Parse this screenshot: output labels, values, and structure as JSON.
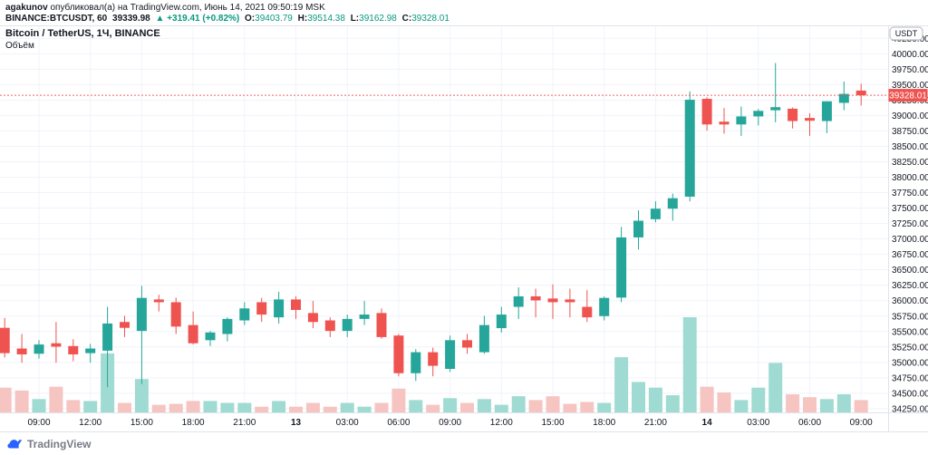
{
  "header": {
    "author": "agakunov",
    "byline": " опубликовал(а) на TradingView.com, Июнь 14, 2021 09:50:19 MSK",
    "quote": {
      "symbol": "BINANCE:BTCUSDT, 60",
      "last": "39339.98",
      "change": "▲ +319.41 (+0.82%)",
      "o_label": "O:",
      "o": "39403.79",
      "h_label": "H:",
      "h": "39514.38",
      "l_label": "L:",
      "l": "39162.98",
      "c_label": "C:",
      "c": "39328.01"
    }
  },
  "chart": {
    "title": "Bitcoin / TetherUS, 1Ч, BINANCE",
    "volume_label": "Объём",
    "axis_currency": "USDT",
    "current_price_label": "39328.01",
    "colors": {
      "up": "#26a69a",
      "down": "#ef5350",
      "vol_up": "#9fdbd2",
      "vol_down": "#f6c5c2",
      "grid": "#f0f3fa",
      "border": "#e0e3eb",
      "axis_text": "#131722",
      "muted_text": "#787b86",
      "price_line": "#ef5350",
      "accent_green": "#089981",
      "logo_blue": "#2962ff"
    }
  },
  "chart_data": {
    "type": "candlestick",
    "symbol": "BINANCE:BTCUSDT",
    "interval_minutes": 60,
    "timezone": "MSK",
    "current_price": 39328.01,
    "price_axis": {
      "min": 34250,
      "max": 40250,
      "step": 250,
      "unit": "USDT"
    },
    "grid": true,
    "volume_note": "volume_rel is percent of tallest visible volume bar (no numeric volume axis shown)",
    "time_ticks": [
      {
        "index": 2,
        "label": "09:00",
        "bold": false
      },
      {
        "index": 5,
        "label": "12:00",
        "bold": false
      },
      {
        "index": 8,
        "label": "15:00",
        "bold": false
      },
      {
        "index": 11,
        "label": "18:00",
        "bold": false
      },
      {
        "index": 14,
        "label": "21:00",
        "bold": false
      },
      {
        "index": 17,
        "label": "13",
        "bold": true
      },
      {
        "index": 20,
        "label": "03:00",
        "bold": false
      },
      {
        "index": 23,
        "label": "06:00",
        "bold": false
      },
      {
        "index": 26,
        "label": "09:00",
        "bold": false
      },
      {
        "index": 29,
        "label": "12:00",
        "bold": false
      },
      {
        "index": 32,
        "label": "15:00",
        "bold": false
      },
      {
        "index": 35,
        "label": "18:00",
        "bold": false
      },
      {
        "index": 38,
        "label": "21:00",
        "bold": false
      },
      {
        "index": 41,
        "label": "14",
        "bold": true
      },
      {
        "index": 44,
        "label": "03:00",
        "bold": false
      },
      {
        "index": 47,
        "label": "06:00",
        "bold": false
      },
      {
        "index": 50,
        "label": "09:00",
        "bold": false
      }
    ],
    "columns": [
      "time",
      "open",
      "high",
      "low",
      "close",
      "volume_rel"
    ],
    "candles": [
      [
        "12.06 07:00",
        35560,
        35720,
        35080,
        35150,
        26
      ],
      [
        "12.06 08:00",
        35225,
        35460,
        34995,
        35130,
        23
      ],
      [
        "12.06 09:00",
        35140,
        35360,
        35060,
        35290,
        14
      ],
      [
        "12.06 10:00",
        35310,
        35655,
        34995,
        35255,
        27
      ],
      [
        "12.06 11:00",
        35265,
        35375,
        35020,
        35130,
        13
      ],
      [
        "12.06 12:00",
        35150,
        35300,
        34995,
        35225,
        12
      ],
      [
        "12.06 13:00",
        35190,
        35900,
        34600,
        35630,
        62
      ],
      [
        "12.06 14:00",
        35655,
        35755,
        35410,
        35560,
        10
      ],
      [
        "12.06 15:00",
        35510,
        36240,
        34650,
        36045,
        35
      ],
      [
        "12.06 16:00",
        36020,
        36095,
        35825,
        35975,
        8
      ],
      [
        "12.06 17:00",
        35975,
        36050,
        35460,
        35580,
        9
      ],
      [
        "12.06 18:00",
        35605,
        35825,
        35290,
        35310,
        12
      ],
      [
        "12.06 19:00",
        35360,
        35510,
        35265,
        35485,
        12
      ],
      [
        "12.06 20:00",
        35460,
        35730,
        35340,
        35705,
        10
      ],
      [
        "12.06 21:00",
        35680,
        35975,
        35605,
        35875,
        10
      ],
      [
        "12.06 22:00",
        35975,
        36045,
        35655,
        35775,
        6
      ],
      [
        "12.06 23:00",
        35730,
        36145,
        35630,
        36020,
        12
      ],
      [
        "13.06 00:00",
        36020,
        36070,
        35705,
        35850,
        6
      ],
      [
        "13.06 01:00",
        35800,
        35995,
        35555,
        35655,
        10
      ],
      [
        "13.06 02:00",
        35680,
        35730,
        35410,
        35510,
        6
      ],
      [
        "13.06 03:00",
        35510,
        35775,
        35410,
        35705,
        10
      ],
      [
        "13.06 04:00",
        35705,
        35995,
        35605,
        35775,
        6
      ],
      [
        "13.06 05:00",
        35800,
        35875,
        35385,
        35410,
        10
      ],
      [
        "13.06 06:00",
        35435,
        35460,
        34775,
        34825,
        25
      ],
      [
        "13.06 07:00",
        34825,
        35215,
        34700,
        35165,
        13
      ],
      [
        "13.06 08:00",
        35165,
        35240,
        34775,
        34945,
        8
      ],
      [
        "13.06 09:00",
        34895,
        35435,
        34845,
        35360,
        15
      ],
      [
        "13.06 10:00",
        35360,
        35460,
        35140,
        35240,
        10
      ],
      [
        "13.06 11:00",
        35165,
        35755,
        35140,
        35605,
        14
      ],
      [
        "13.06 12:00",
        35555,
        35900,
        35485,
        35775,
        8
      ],
      [
        "13.06 13:00",
        35900,
        36215,
        35705,
        36070,
        17
      ],
      [
        "13.06 14:00",
        36070,
        36195,
        35730,
        36005,
        13
      ],
      [
        "13.06 15:00",
        36035,
        36265,
        35705,
        35975,
        17
      ],
      [
        "13.06 16:00",
        36020,
        36195,
        35730,
        35975,
        9
      ],
      [
        "13.06 17:00",
        35900,
        36170,
        35655,
        35730,
        11
      ],
      [
        "13.06 18:00",
        35750,
        36070,
        35680,
        36045,
        10
      ],
      [
        "13.06 19:00",
        36050,
        37195,
        35975,
        37025,
        58
      ],
      [
        "13.06 20:00",
        37025,
        37465,
        36830,
        37295,
        32
      ],
      [
        "13.06 21:00",
        37320,
        37610,
        37270,
        37490,
        26
      ],
      [
        "13.06 22:00",
        37490,
        37735,
        37295,
        37660,
        18
      ],
      [
        "13.06 23:00",
        37685,
        39390,
        37610,
        39255,
        100
      ],
      [
        "14.06 00:00",
        39270,
        39295,
        38755,
        38855,
        27
      ],
      [
        "14.06 01:00",
        38900,
        39120,
        38705,
        38855,
        21
      ],
      [
        "14.06 02:00",
        38855,
        39145,
        38670,
        38985,
        13
      ],
      [
        "14.06 03:00",
        38985,
        39105,
        38840,
        39075,
        26
      ],
      [
        "14.06 04:00",
        39085,
        39850,
        38890,
        39135,
        52
      ],
      [
        "14.06 05:00",
        39110,
        39130,
        38790,
        38910,
        19
      ],
      [
        "14.06 06:00",
        38960,
        39035,
        38670,
        38915,
        16
      ],
      [
        "14.06 07:00",
        38910,
        39230,
        38715,
        39230,
        14
      ],
      [
        "14.06 08:00",
        39205,
        39550,
        39085,
        39350,
        19
      ],
      [
        "14.06 09:00",
        39403.79,
        39514.38,
        39162.98,
        39328.01,
        13
      ]
    ]
  },
  "footer": {
    "brand": "TradingView"
  }
}
